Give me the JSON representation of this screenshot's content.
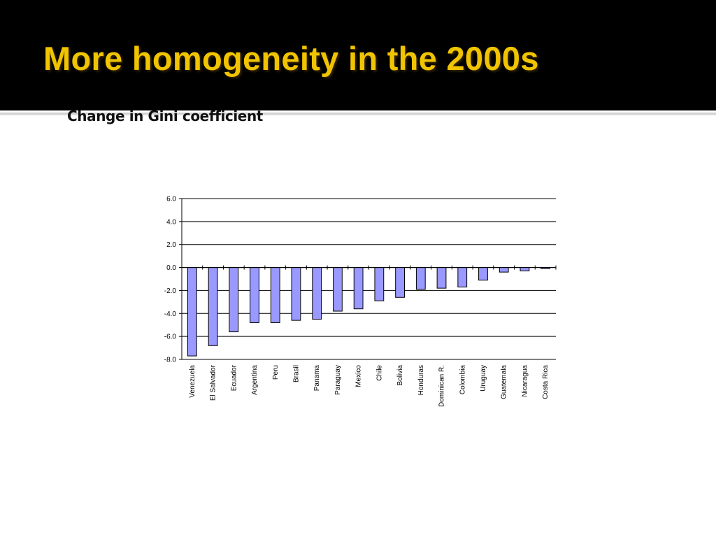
{
  "slide": {
    "title": "More homogeneity in the 2000s",
    "subtitle": "Change in Gini coefficient"
  },
  "colors": {
    "title_bar": "#000000",
    "title_text": "#f0c400",
    "bar_fill": "#9999ff",
    "bar_stroke": "#000000"
  },
  "chart_data": {
    "type": "bar",
    "title": "",
    "xlabel": "",
    "ylabel": "",
    "ylim": [
      -8.0,
      6.0
    ],
    "yticks": [
      "6.0",
      "4.0",
      "2.0",
      "0.0",
      "-2.0",
      "-4.0",
      "-6.0",
      "-8.0"
    ],
    "grid": "horizontal",
    "categories": [
      "Venezuela",
      "El Salvador",
      "Ecuador",
      "Argentina",
      "Peru",
      "Brasil",
      "Panama",
      "Paraguay",
      "Mexico",
      "Chile",
      "Bolivia",
      "Honduras",
      "Dominican R.",
      "Colombia",
      "Uruguay",
      "Guatemala",
      "Nicaragua",
      "Costa Rica"
    ],
    "values": [
      -7.7,
      -6.8,
      -5.6,
      -4.8,
      -4.8,
      -4.6,
      -4.5,
      -3.8,
      -3.6,
      -2.9,
      -2.6,
      -1.9,
      -1.8,
      -1.7,
      -1.1,
      -0.4,
      -0.3,
      -0.1
    ]
  }
}
